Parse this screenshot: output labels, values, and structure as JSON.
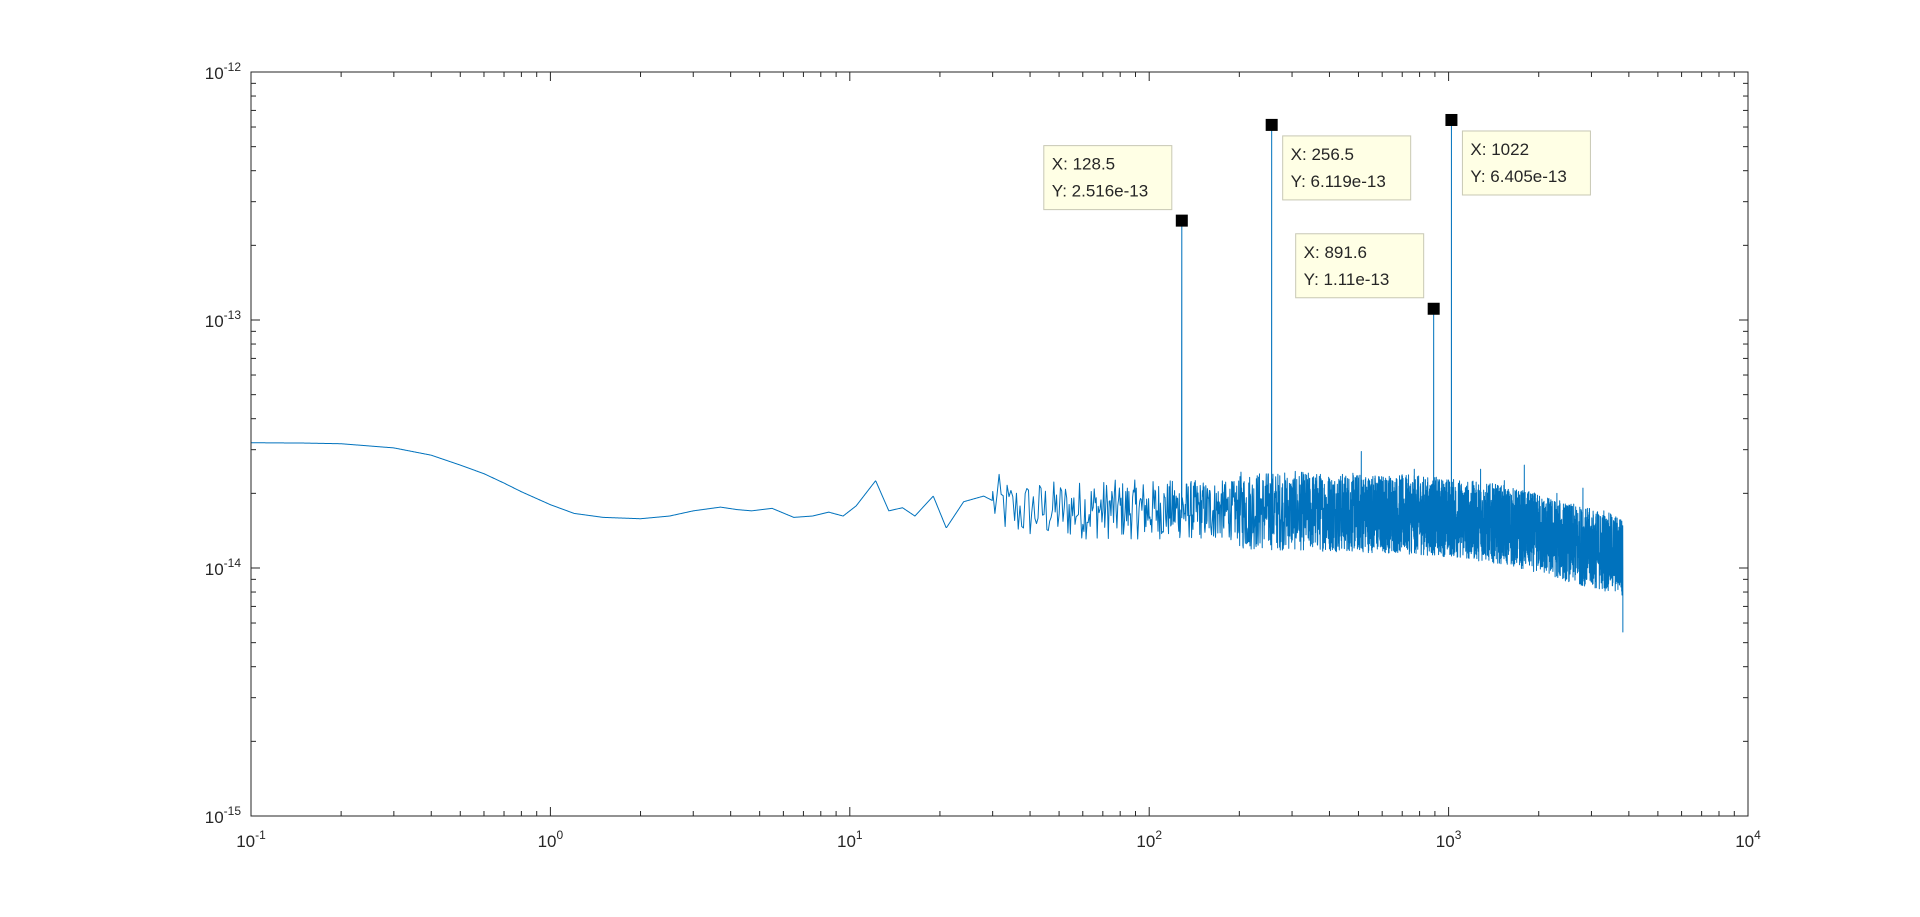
{
  "figure": {
    "background": "#ffffff"
  },
  "chart_data": {
    "type": "line",
    "title": "",
    "xlabel": "",
    "ylabel": "",
    "x_scale": "log",
    "y_scale": "log",
    "xlim": [
      0.1,
      10000
    ],
    "ylim": [
      1e-15,
      1e-12
    ],
    "grid": false,
    "box": true,
    "x_ticks": [
      {
        "value": 0.1,
        "base": "10",
        "exp": "-1"
      },
      {
        "value": 1,
        "base": "10",
        "exp": "0"
      },
      {
        "value": 10,
        "base": "10",
        "exp": "1"
      },
      {
        "value": 100,
        "base": "10",
        "exp": "2"
      },
      {
        "value": 1000,
        "base": "10",
        "exp": "3"
      },
      {
        "value": 10000,
        "base": "10",
        "exp": "4"
      }
    ],
    "y_ticks": [
      {
        "value": 1e-15,
        "base": "10",
        "exp": "-15"
      },
      {
        "value": 1e-14,
        "base": "10",
        "exp": "-14"
      },
      {
        "value": 1e-13,
        "base": "10",
        "exp": "-13"
      },
      {
        "value": 1e-12,
        "base": "10",
        "exp": "-12"
      }
    ],
    "series": [
      {
        "color": "#0072BD",
        "baseline": [
          [
            0.1,
            3.2e-14
          ],
          [
            0.15,
            3.19e-14
          ],
          [
            0.2,
            3.17e-14
          ],
          [
            0.3,
            3.05e-14
          ],
          [
            0.4,
            2.85e-14
          ],
          [
            0.5,
            2.6e-14
          ],
          [
            0.6,
            2.4e-14
          ],
          [
            0.7,
            2.2e-14
          ],
          [
            0.8,
            2.03e-14
          ],
          [
            1.0,
            1.8e-14
          ],
          [
            1.2,
            1.66e-14
          ],
          [
            1.5,
            1.6e-14
          ],
          [
            2.0,
            1.58e-14
          ],
          [
            2.5,
            1.62e-14
          ],
          [
            3.0,
            1.7e-14
          ],
          [
            3.7,
            1.76e-14
          ],
          [
            4.2,
            1.72e-14
          ],
          [
            4.7,
            1.7e-14
          ],
          [
            5.5,
            1.74e-14
          ],
          [
            6.5,
            1.6e-14
          ],
          [
            7.5,
            1.62e-14
          ],
          [
            8.5,
            1.68e-14
          ],
          [
            9.5,
            1.62e-14
          ],
          [
            10.5,
            1.78e-14
          ],
          [
            12.2,
            2.25e-14
          ],
          [
            13.5,
            1.7e-14
          ],
          [
            15.0,
            1.75e-14
          ],
          [
            16.5,
            1.62e-14
          ],
          [
            19.0,
            1.95e-14
          ],
          [
            21.0,
            1.45e-14
          ],
          [
            24.0,
            1.85e-14
          ],
          [
            28.0,
            1.95e-14
          ],
          [
            35.0,
            1.7e-14
          ],
          [
            60.0,
            1.72e-14
          ],
          [
            120.0,
            1.72e-14
          ],
          [
            300.0,
            1.7e-14
          ],
          [
            700.0,
            1.65e-14
          ],
          [
            1000.0,
            1.6e-14
          ],
          [
            1500.0,
            1.5e-14
          ],
          [
            2000.0,
            1.38e-14
          ],
          [
            2500.0,
            1.27e-14
          ],
          [
            3000.0,
            1.2e-14
          ],
          [
            3500.0,
            1.15e-14
          ],
          [
            3800.0,
            1.12e-14
          ]
        ],
        "peaks": [
          {
            "x": 128.5,
            "y": 2.516e-13
          },
          {
            "x": 256.5,
            "y": 6.119e-13
          },
          {
            "x": 891.6,
            "y": 1.11e-13
          },
          {
            "x": 1022,
            "y": 6.405e-13
          },
          {
            "x": 511,
            "y": 2.95e-14
          },
          {
            "x": 640,
            "y": 2.3e-14
          },
          {
            "x": 768,
            "y": 2.5e-14
          },
          {
            "x": 1279,
            "y": 2.5e-14
          },
          {
            "x": 1535,
            "y": 2.25e-14
          },
          {
            "x": 1790,
            "y": 2.6e-14
          },
          {
            "x": 2300,
            "y": 2e-14
          },
          {
            "x": 2810,
            "y": 2.1e-14
          },
          {
            "x": 3300,
            "y": 1.7e-14
          }
        ],
        "end_drop": {
          "x": 3820,
          "y": 5.5e-15
        }
      }
    ],
    "datatips": [
      {
        "x": 128.5,
        "y": 2.516e-13,
        "x_text": "X: 128.5",
        "y_text": "Y: 2.516e-13",
        "placement": "upper-left"
      },
      {
        "x": 256.5,
        "y": 6.119e-13,
        "x_text": "X: 256.5",
        "y_text": "Y: 6.119e-13",
        "placement": "lower-right"
      },
      {
        "x": 891.6,
        "y": 1.11e-13,
        "x_text": "X: 891.6",
        "y_text": "Y: 1.11e-13",
        "placement": "upper-left"
      },
      {
        "x": 1022,
        "y": 6.405e-13,
        "x_text": "X: 1022",
        "y_text": "Y: 6.405e-13",
        "placement": "lower-right"
      }
    ],
    "datatip_style": {
      "background": "#FFFFE5",
      "border": "#C8C8B4",
      "marker": "#000000"
    }
  }
}
